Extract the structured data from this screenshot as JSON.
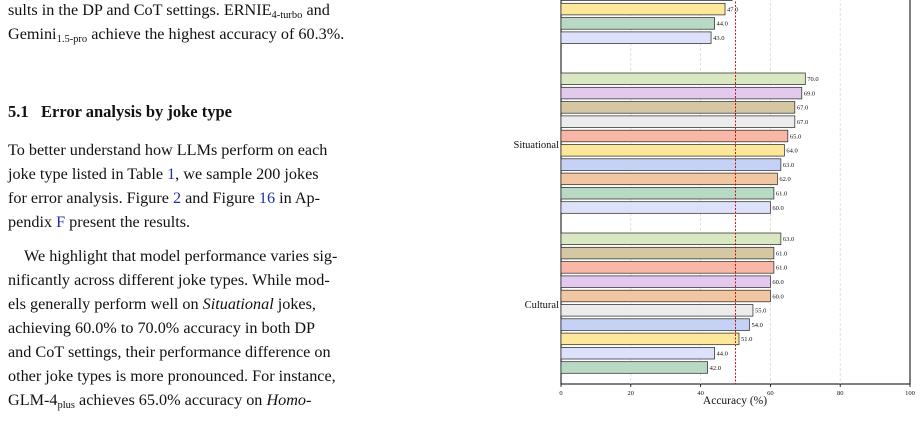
{
  "paper": {
    "p1_l1": {
      "pre": "sults in the DP and CoT settings. ERNIE",
      "sub": "4-turbo",
      "post": " and"
    },
    "p1_l2": {
      "pre": "Gemini",
      "sub": "1.5-pro",
      "post": " achieve the highest accuracy of 60.3%."
    },
    "section_number": "5.1",
    "section_title": "Error analysis by joke type",
    "p2_l1": "To better understand how LLMs perform on each",
    "p2_l2": "joke type listed in Table ",
    "p2_l2_ref": "1",
    "p2_l2_post": ", we sample 200 jokes",
    "p2_l3_pre": "for error analysis. Figure ",
    "p2_l3_ref1": "2",
    "p2_l3_mid": " and Figure ",
    "p2_l3_ref2": "16",
    "p2_l3_post": " in Ap-",
    "p2_l4_pre": "pendix ",
    "p2_l4_ref": "F",
    "p2_l4_post": " present the results.",
    "p3_l1": "We highlight that model performance varies sig-",
    "p3_l2": "nificantly across different joke types. While mod-",
    "p3_l3_pre": "els generally perform well on ",
    "p3_l3_em": "Situational",
    "p3_l3_post": " jokes,",
    "p3_l4": "achieving 60.0% to 70.0% accuracy in both DP",
    "p3_l5": "and CoT settings, their performance difference on",
    "p3_l6": "other joke types is more pronounced. For instance,",
    "p3_l7": {
      "pre": "GLM-4",
      "sub": "plus",
      "post": " achieves 65.0% accuracy on ",
      "em": "Homo-"
    }
  },
  "chart_data": {
    "type": "bar",
    "orientation": "horizontal",
    "xlabel": "Accuracy (%)",
    "xlim": [
      0,
      100
    ],
    "xticks": [
      0,
      20,
      40,
      60,
      80,
      100
    ],
    "grid": true,
    "reference_line": 50,
    "groups": [
      {
        "name": "",
        "values": [
          49.0,
          47.0,
          44.0,
          43.0
        ],
        "colors": [
          "#c5d2f5",
          "#fde79a",
          "#b8d9c4",
          "#dde1fa"
        ],
        "partially_visible": true
      },
      {
        "name": "Situational",
        "values": [
          70.0,
          69.0,
          67.0,
          67.0,
          65.0,
          64.0,
          63.0,
          62.0,
          61.0,
          60.0
        ],
        "colors": [
          "#d9e8c2",
          "#e3c9ee",
          "#d4c7a1",
          "#ececec",
          "#f9b8a7",
          "#fde79a",
          "#c5d2f5",
          "#f1c7a2",
          "#b8d9c4",
          "#dde1fa"
        ]
      },
      {
        "name": "Cultural",
        "values": [
          63.0,
          61.0,
          61.0,
          60.0,
          60.0,
          55.0,
          54.0,
          51.0,
          44.0,
          42.0
        ],
        "colors": [
          "#d9e8c2",
          "#d4c7a1",
          "#f9b8a7",
          "#e3c9ee",
          "#f1c7a2",
          "#ececec",
          "#c5d2f5",
          "#fde79a",
          "#dde1fa",
          "#b8d9c4"
        ]
      }
    ]
  }
}
